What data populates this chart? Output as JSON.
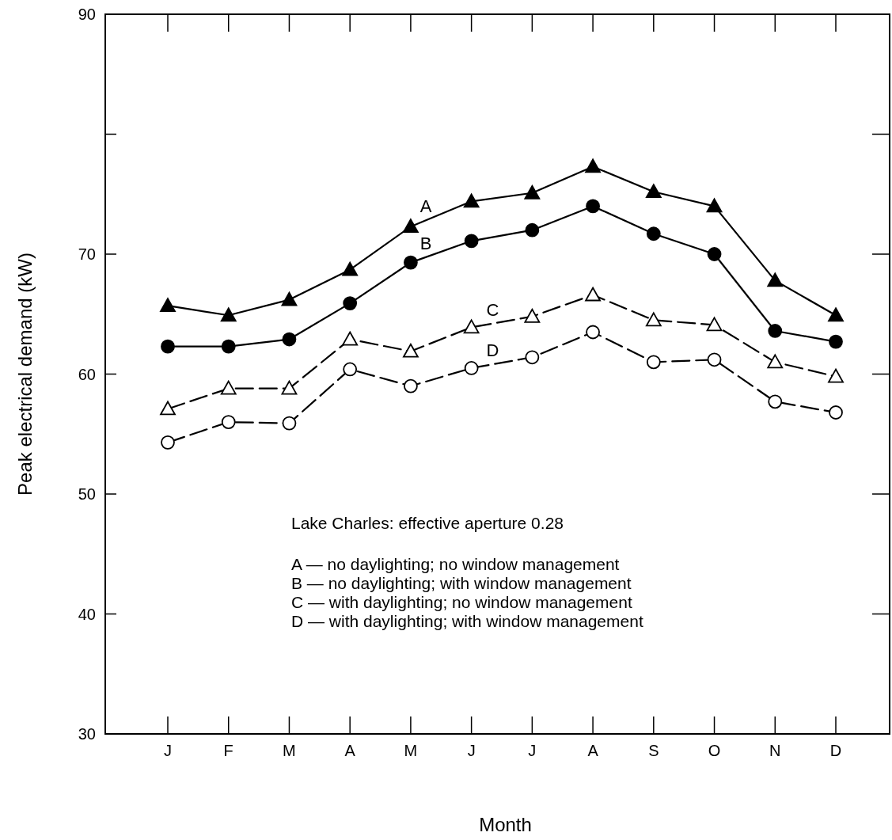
{
  "chart_data": {
    "type": "line",
    "xlabel": "Month",
    "ylabel": "Peak electrical demand (kW)",
    "categories": [
      "J",
      "F",
      "M",
      "A",
      "M",
      "J",
      "J",
      "A",
      "S",
      "O",
      "N",
      "D"
    ],
    "ylim": [
      30,
      90
    ],
    "yticks": [
      30,
      40,
      50,
      60,
      70,
      {
        "value": 80,
        "label": null
      },
      90
    ],
    "grid": false,
    "series": [
      {
        "name": "A",
        "color": "#000000",
        "marker": "triangle",
        "line_style": "solid",
        "values": [
          65.7,
          64.9,
          66.2,
          68.7,
          72.3,
          74.4,
          75.1,
          77.3,
          75.2,
          74.0,
          67.8,
          64.9
        ]
      },
      {
        "name": "B",
        "color": "#000000",
        "marker": "circle",
        "line_style": "solid",
        "values": [
          62.3,
          62.3,
          62.9,
          65.9,
          69.3,
          71.1,
          72.0,
          74.0,
          71.7,
          70.0,
          63.6,
          62.7
        ]
      },
      {
        "name": "C",
        "color": "#000000",
        "marker": "triangle",
        "line_style": "dashed",
        "values": [
          57.1,
          58.8,
          58.8,
          62.9,
          61.9,
          63.9,
          64.8,
          66.6,
          64.5,
          64.1,
          61.0,
          59.8
        ]
      },
      {
        "name": "D",
        "color": "#000000",
        "marker": "circle",
        "line_style": "dashed",
        "values": [
          54.3,
          56.0,
          55.9,
          60.4,
          59.0,
          60.5,
          61.4,
          63.5,
          61.0,
          61.2,
          57.7,
          56.8
        ]
      }
    ],
    "annotations": [
      "Lake Charles: effective aperture 0.28",
      "A — no daylighting; no window management",
      "B — no daylighting; with window management",
      "C — with daylighting; no window management",
      "D — with daylighting; with window management"
    ]
  }
}
